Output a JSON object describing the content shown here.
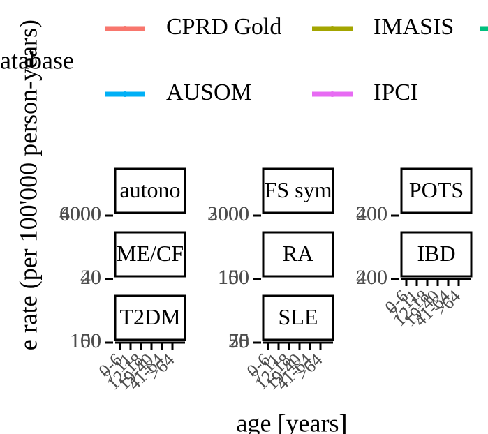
{
  "chart_data": {
    "type": "facet-line",
    "legend_title": "atabase",
    "series": [
      {
        "name": "CPRD Gold",
        "color": "#F8766D"
      },
      {
        "name": "IMASIS",
        "color": "#A3A500"
      },
      {
        "color": "#00BF7D"
      },
      {
        "name": "AUSOM",
        "color": "#00B0F6"
      },
      {
        "name": "IPCI",
        "color": "#E76BF3"
      }
    ],
    "y_label": "e rate (per 100'000 person-years)",
    "x_label": "age [years]",
    "categories": [
      "0-6",
      "7-11",
      "12-18",
      "19-40",
      "41-64",
      ">64"
    ],
    "facets": [
      {
        "label": "autono",
        "yticks": [
          4000,
          6000
        ]
      },
      {
        "label": "FS sym",
        "yticks": [
          2000,
          3000
        ]
      },
      {
        "label": "POTS",
        "yticks": [
          200,
          400
        ]
      },
      {
        "label": "ME/CF",
        "yticks": [
          20,
          40
        ]
      },
      {
        "label": "RA",
        "yticks": [
          100,
          150
        ]
      },
      {
        "label": "IBD",
        "yticks": [
          200,
          400
        ]
      },
      {
        "label": "T2DM",
        "yticks": [
          100,
          150
        ]
      },
      {
        "label": "SLE",
        "yticks": [
          25,
          50,
          75
        ]
      }
    ]
  }
}
